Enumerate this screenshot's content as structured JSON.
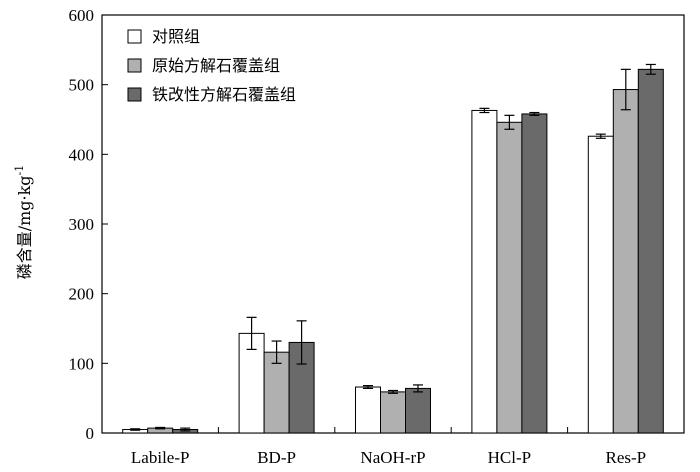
{
  "chart_data": {
    "type": "bar",
    "ylabel": "磷含量/mg·kg",
    "ylabel_sup": "-1",
    "ylim": [
      0,
      600
    ],
    "yticks": [
      0,
      100,
      200,
      300,
      400,
      500,
      600
    ],
    "categories": [
      "Labile-P",
      "BD-P",
      "NaOH-rP",
      "HCl-P",
      "Res-P"
    ],
    "legend_position": "top-left",
    "series": [
      {
        "name": "对照组",
        "color": "#ffffff",
        "values": [
          5,
          143,
          66,
          463,
          426
        ],
        "errors": [
          1,
          23,
          2,
          3,
          3
        ]
      },
      {
        "name": "原始方解石覆盖组",
        "color": "#b0b0b0",
        "values": [
          7,
          116,
          59,
          446,
          493
        ],
        "errors": [
          1,
          16,
          2,
          10,
          29
        ]
      },
      {
        "name": "铁改性方解石覆盖组",
        "color": "#6a6a6a",
        "values": [
          5,
          130,
          64,
          458,
          522
        ],
        "errors": [
          2,
          31,
          5,
          2,
          7
        ]
      }
    ]
  }
}
